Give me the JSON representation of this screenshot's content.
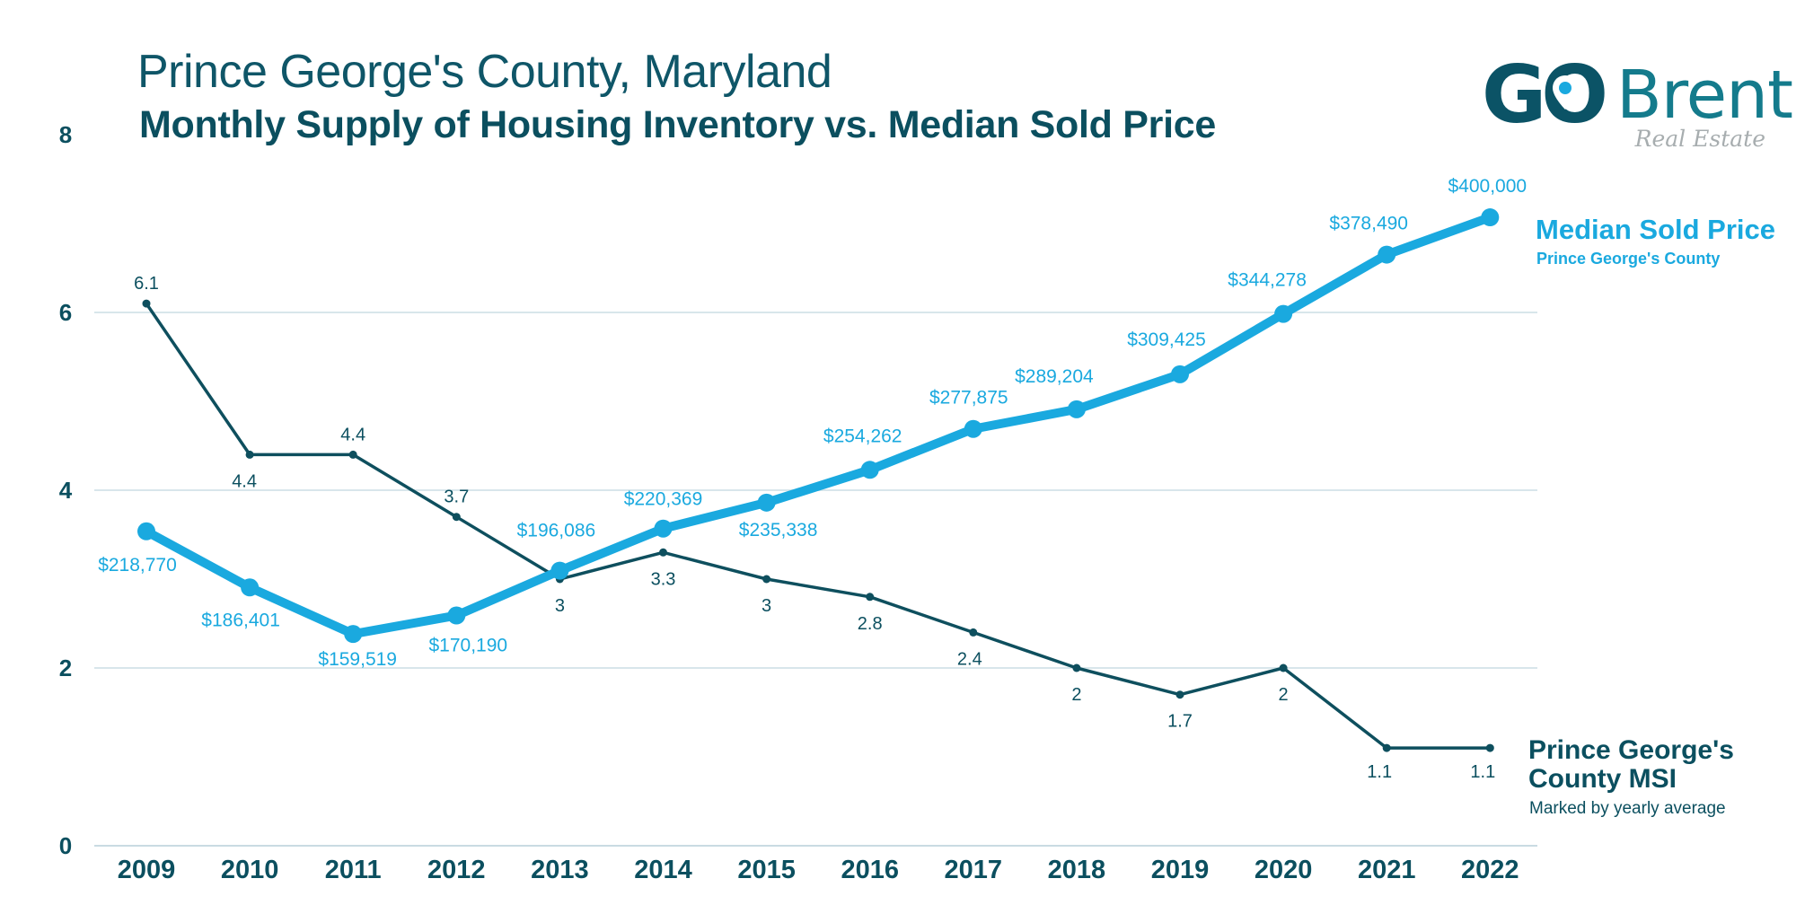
{
  "header": {
    "title": "Prince George's County, Maryland",
    "subtitle": "Monthly Supply of Housing Inventory vs. Median Sold Price"
  },
  "logo": {
    "mark": "GO",
    "name": "Brent",
    "tagline": "Real Estate",
    "icon": "map-pin-icon",
    "colors": {
      "dark": "#0b5366",
      "mid": "#147b8c",
      "accent": "#1aa9df",
      "tagline": "#a7adaf"
    }
  },
  "legend": {
    "price_title": "Median Sold Price",
    "price_subtitle": "Prince George's County",
    "msi_title_line1": "Prince George's",
    "msi_title_line2": "County MSI",
    "msi_subtitle": "Marked by yearly average"
  },
  "chart_data": {
    "type": "line",
    "title": "Monthly Supply of Housing Inventory vs. Median Sold Price",
    "xlabel": "",
    "ylabel": "",
    "x": [
      "2009",
      "2010",
      "2011",
      "2012",
      "2013",
      "2014",
      "2015",
      "2016",
      "2017",
      "2018",
      "2019",
      "2020",
      "2021",
      "2022"
    ],
    "ylim": [
      0,
      8
    ],
    "yticks": [
      0,
      2,
      4,
      6,
      8
    ],
    "grid": true,
    "series": [
      {
        "name": "Prince George's County MSI",
        "axis": "primary",
        "color": "#0e4f5e",
        "values": [
          6.1,
          4.4,
          4.4,
          3.7,
          3,
          3.3,
          3,
          2.8,
          2.4,
          2,
          1.7,
          2,
          1.1,
          1.1
        ],
        "labels": [
          "6.1",
          "4.4",
          "4.4",
          "3.7",
          "3",
          "3.3",
          "3",
          "2.8",
          "2.4",
          "2",
          "1.7",
          "2",
          "1.1",
          "1.1"
        ],
        "label_positions": [
          "above",
          "below",
          "above",
          "above",
          "below",
          "below",
          "below",
          "below",
          "below",
          "below",
          "below",
          "below",
          "below",
          "below"
        ]
      },
      {
        "name": "Median Sold Price",
        "axis": "secondary",
        "color": "#1aa9df",
        "values": [
          218770,
          186401,
          159519,
          170190,
          196086,
          220369,
          235338,
          254262,
          277875,
          289204,
          309425,
          344278,
          378490,
          400000
        ],
        "labels": [
          "$218,770",
          "$186,401",
          "$159,519",
          "$170,190",
          "$196,086",
          "$220,369",
          "$235,338",
          "$254,262",
          "$277,875",
          "$289,204",
          "$309,425",
          "$344,278",
          "$378,490",
          "$400,000"
        ],
        "label_positions": [
          "below-left",
          "below-left",
          "below",
          "below",
          "above-left",
          "above",
          "below",
          "above",
          "above",
          "above",
          "above",
          "above",
          "above",
          "above"
        ]
      }
    ],
    "secondary_ylim": [
      37300,
      447700
    ],
    "legend_placement": "right"
  }
}
